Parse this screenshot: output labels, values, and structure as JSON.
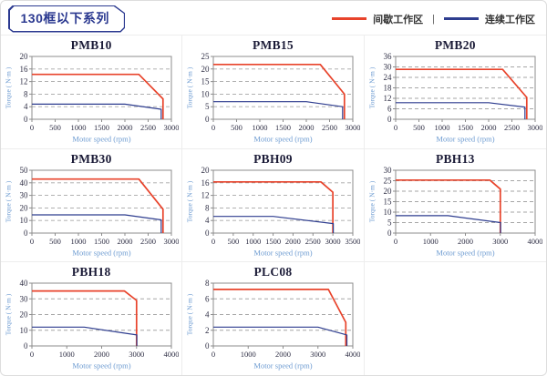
{
  "header": {
    "title": "130框以下系列"
  },
  "legend": {
    "separator": "|",
    "items": [
      {
        "label": "间歇工作区",
        "color": "#e8432b"
      },
      {
        "label": "连续工作区",
        "color": "#2e3d8f"
      }
    ]
  },
  "colors": {
    "intermittent_line": "#e8432b",
    "continuous_line": "#2e3d8f",
    "grid_dash": "#a6a6a6",
    "plot_border": "#8c8c8c",
    "tick_text": "#2e2e44",
    "axis_label_text": "#6d9bd1",
    "tag_border": "#2b3990"
  },
  "chart_data": [
    {
      "type": "line",
      "title": "PMB10",
      "xlabel": "Motor speed (rpm)",
      "ylabel": "Torque ( N·m )",
      "xlim": [
        0,
        3000
      ],
      "ylim": [
        0,
        20
      ],
      "xticks": [
        0,
        500,
        1000,
        1500,
        2000,
        2500,
        3000
      ],
      "yticks": [
        0,
        4,
        8,
        12,
        16,
        20
      ],
      "series": [
        {
          "name": "间歇工作区",
          "points": [
            [
              0,
              14.3
            ],
            [
              2300,
              14.3
            ],
            [
              2820,
              6.5
            ],
            [
              2820,
              0
            ]
          ]
        },
        {
          "name": "连续工作区",
          "points": [
            [
              0,
              4.8
            ],
            [
              2000,
              4.8
            ],
            [
              2780,
              3.2
            ],
            [
              2780,
              0
            ]
          ]
        }
      ]
    },
    {
      "type": "line",
      "title": "PMB15",
      "xlabel": "Motor speed (rpm)",
      "ylabel": "Torque ( N·m )",
      "xlim": [
        0,
        3000
      ],
      "ylim": [
        0,
        25
      ],
      "xticks": [
        0,
        500,
        1000,
        1500,
        2000,
        2500,
        3000
      ],
      "yticks": [
        0,
        5,
        10,
        15,
        20,
        25
      ],
      "series": [
        {
          "name": "间歇工作区",
          "points": [
            [
              0,
              21.8
            ],
            [
              2300,
              21.8
            ],
            [
              2820,
              10
            ],
            [
              2820,
              0
            ]
          ]
        },
        {
          "name": "连续工作区",
          "points": [
            [
              0,
              7
            ],
            [
              2000,
              7
            ],
            [
              2780,
              5
            ],
            [
              2780,
              0
            ]
          ]
        }
      ]
    },
    {
      "type": "line",
      "title": "PMB20",
      "xlabel": "Motor speed (rpm)",
      "ylabel": "Torque ( N·m )",
      "xlim": [
        0,
        3000
      ],
      "ylim": [
        0,
        36
      ],
      "xticks": [
        0,
        500,
        1000,
        1500,
        2000,
        2500,
        3000
      ],
      "yticks": [
        0,
        6,
        12,
        18,
        24,
        30,
        36
      ],
      "series": [
        {
          "name": "间歇工作区",
          "points": [
            [
              0,
              28.6
            ],
            [
              2300,
              28.6
            ],
            [
              2820,
              12.5
            ],
            [
              2820,
              0
            ]
          ]
        },
        {
          "name": "连续工作区",
          "points": [
            [
              0,
              9.5
            ],
            [
              2000,
              9.5
            ],
            [
              2780,
              7
            ],
            [
              2780,
              0
            ]
          ]
        }
      ]
    },
    {
      "type": "line",
      "title": "PMB30",
      "xlabel": "Motor speed (rpm)",
      "ylabel": "Torque ( N·m )",
      "xlim": [
        0,
        3000
      ],
      "ylim": [
        0,
        50
      ],
      "xticks": [
        0,
        500,
        1000,
        1500,
        2000,
        2500,
        3000
      ],
      "yticks": [
        0,
        10,
        20,
        30,
        40,
        50
      ],
      "series": [
        {
          "name": "间歇工作区",
          "points": [
            [
              0,
              43
            ],
            [
              2300,
              43
            ],
            [
              2820,
              19
            ],
            [
              2820,
              0
            ]
          ]
        },
        {
          "name": "连续工作区",
          "points": [
            [
              0,
              14.5
            ],
            [
              2000,
              14.5
            ],
            [
              2780,
              10.5
            ],
            [
              2780,
              0
            ]
          ]
        }
      ]
    },
    {
      "type": "line",
      "title": "PBH09",
      "xlabel": "Motor speed (rpm)",
      "ylabel": "Torque ( N·m )",
      "xlim": [
        0,
        3500
      ],
      "ylim": [
        0,
        20
      ],
      "xticks": [
        0,
        500,
        1000,
        1500,
        2000,
        2500,
        3000,
        3500
      ],
      "yticks": [
        0,
        4,
        8,
        12,
        16,
        20
      ],
      "series": [
        {
          "name": "间歇工作区",
          "points": [
            [
              0,
              16.3
            ],
            [
              2700,
              16.3
            ],
            [
              3000,
              13
            ],
            [
              3000,
              0
            ]
          ]
        },
        {
          "name": "连续工作区",
          "points": [
            [
              0,
              5.3
            ],
            [
              1500,
              5.3
            ],
            [
              3010,
              3
            ],
            [
              3010,
              0
            ]
          ]
        }
      ]
    },
    {
      "type": "line",
      "title": "PBH13",
      "xlabel": "Motor speed (rpm)",
      "ylabel": "Torque ( N·m )",
      "xlim": [
        0,
        4000
      ],
      "ylim": [
        0,
        30
      ],
      "xticks": [
        0,
        1000,
        2000,
        3000,
        4000
      ],
      "yticks": [
        0,
        5,
        10,
        15,
        20,
        25,
        30
      ],
      "series": [
        {
          "name": "间歇工作区",
          "points": [
            [
              0,
              25.3
            ],
            [
              2700,
              25.3
            ],
            [
              3000,
              21
            ],
            [
              3000,
              0
            ]
          ]
        },
        {
          "name": "连续工作区",
          "points": [
            [
              0,
              8.3
            ],
            [
              1500,
              8.3
            ],
            [
              3010,
              5
            ],
            [
              3010,
              0
            ]
          ]
        }
      ]
    },
    {
      "type": "line",
      "title": "PBH18",
      "xlabel": "Motor speed (rpm)",
      "ylabel": "Torque ( N·m )",
      "xlim": [
        0,
        4000
      ],
      "ylim": [
        0,
        40
      ],
      "xticks": [
        0,
        1000,
        2000,
        3000,
        4000
      ],
      "yticks": [
        0,
        10,
        20,
        30,
        40
      ],
      "series": [
        {
          "name": "间歇工作区",
          "points": [
            [
              0,
              35
            ],
            [
              2650,
              35
            ],
            [
              3000,
              29
            ],
            [
              3000,
              0
            ]
          ]
        },
        {
          "name": "连续工作区",
          "points": [
            [
              0,
              12
            ],
            [
              1500,
              12
            ],
            [
              3010,
              7
            ],
            [
              3010,
              0
            ]
          ]
        }
      ]
    },
    {
      "type": "line",
      "title": "PLC08",
      "xlabel": "Motor speed (rpm)",
      "ylabel": "Torque ( N·m )",
      "xlim": [
        0,
        4000
      ],
      "ylim": [
        0,
        8
      ],
      "xticks": [
        0,
        1000,
        2000,
        3000,
        4000
      ],
      "yticks": [
        0,
        2,
        4,
        6,
        8
      ],
      "series": [
        {
          "name": "间歇工作区",
          "points": [
            [
              0,
              7.2
            ],
            [
              3300,
              7.2
            ],
            [
              3800,
              3
            ],
            [
              3800,
              0
            ]
          ]
        },
        {
          "name": "连续工作区",
          "points": [
            [
              0,
              2.4
            ],
            [
              3000,
              2.4
            ],
            [
              3830,
              1.4
            ],
            [
              3830,
              0
            ]
          ]
        }
      ]
    }
  ]
}
